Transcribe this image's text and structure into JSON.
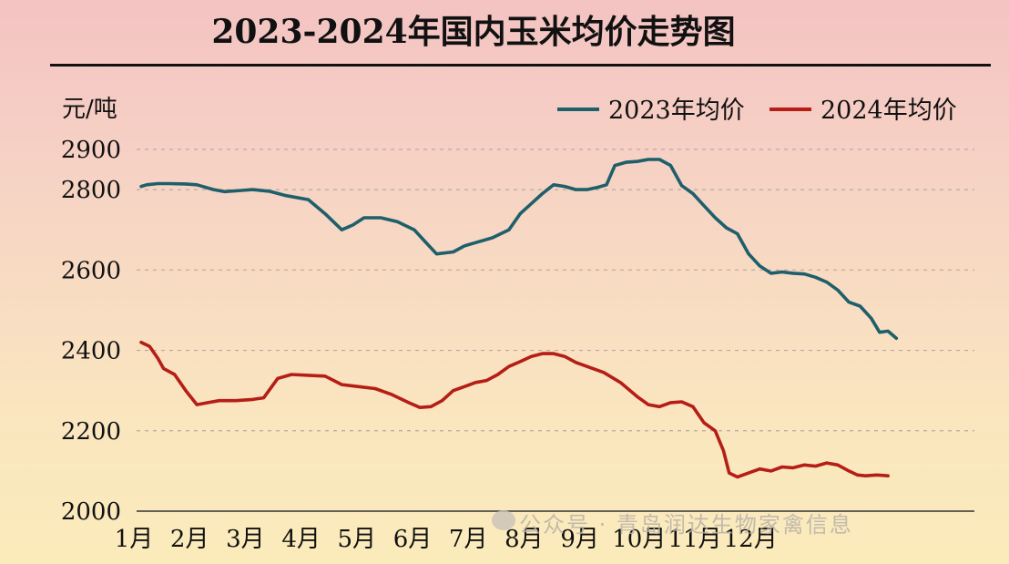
{
  "chart_data": {
    "type": "line",
    "title": "2023-2024年国内玉米均价走势图",
    "ylabel": "元/吨",
    "xlabel": "",
    "ylim": [
      2000,
      2900
    ],
    "y_ticks": [
      2000,
      2200,
      2400,
      2600,
      2800,
      2900
    ],
    "categories": [
      "1月",
      "2月",
      "3月",
      "4月",
      "5月",
      "6月",
      "7月",
      "8月",
      "9月",
      "10月",
      "11月",
      "12月"
    ],
    "grid": true,
    "legend_position": "top-right",
    "series": [
      {
        "name": "2023年均价",
        "color": "#1f5f6b",
        "points": [
          [
            0.0,
            2808
          ],
          [
            0.1,
            2812
          ],
          [
            0.3,
            2815
          ],
          [
            0.5,
            2815
          ],
          [
            0.8,
            2814
          ],
          [
            1.0,
            2812
          ],
          [
            1.3,
            2800
          ],
          [
            1.5,
            2795
          ],
          [
            1.8,
            2798
          ],
          [
            2.0,
            2800
          ],
          [
            2.3,
            2796
          ],
          [
            2.6,
            2785
          ],
          [
            3.0,
            2775
          ],
          [
            3.3,
            2740
          ],
          [
            3.6,
            2700
          ],
          [
            3.8,
            2712
          ],
          [
            4.0,
            2730
          ],
          [
            4.3,
            2730
          ],
          [
            4.6,
            2720
          ],
          [
            4.9,
            2700
          ],
          [
            5.1,
            2670
          ],
          [
            5.3,
            2640
          ],
          [
            5.6,
            2645
          ],
          [
            5.8,
            2660
          ],
          [
            6.0,
            2668
          ],
          [
            6.3,
            2680
          ],
          [
            6.6,
            2700
          ],
          [
            6.8,
            2740
          ],
          [
            7.0,
            2765
          ],
          [
            7.2,
            2790
          ],
          [
            7.4,
            2812
          ],
          [
            7.6,
            2808
          ],
          [
            7.8,
            2800
          ],
          [
            8.0,
            2800
          ],
          [
            8.2,
            2806
          ],
          [
            8.35,
            2812
          ],
          [
            8.5,
            2860
          ],
          [
            8.7,
            2868
          ],
          [
            8.9,
            2870
          ],
          [
            9.1,
            2875
          ],
          [
            9.3,
            2875
          ],
          [
            9.5,
            2860
          ],
          [
            9.7,
            2810
          ],
          [
            9.9,
            2790
          ],
          [
            10.1,
            2760
          ],
          [
            10.3,
            2730
          ],
          [
            10.5,
            2705
          ],
          [
            10.7,
            2690
          ],
          [
            10.9,
            2640
          ],
          [
            11.1,
            2610
          ],
          [
            11.3,
            2592
          ],
          [
            11.5,
            2595
          ],
          [
            11.7,
            2592
          ],
          [
            11.9,
            2590
          ],
          [
            12.1,
            2582
          ],
          [
            12.3,
            2570
          ],
          [
            12.5,
            2550
          ],
          [
            12.7,
            2520
          ],
          [
            12.9,
            2510
          ],
          [
            13.1,
            2480
          ],
          [
            13.25,
            2445
          ],
          [
            13.4,
            2448
          ],
          [
            13.55,
            2430
          ]
        ]
      },
      {
        "name": "2024年均价",
        "color": "#b51e16",
        "points": [
          [
            0.0,
            2420
          ],
          [
            0.15,
            2410
          ],
          [
            0.3,
            2380
          ],
          [
            0.4,
            2355
          ],
          [
            0.6,
            2340
          ],
          [
            0.8,
            2300
          ],
          [
            1.0,
            2265
          ],
          [
            1.2,
            2270
          ],
          [
            1.4,
            2275
          ],
          [
            1.7,
            2275
          ],
          [
            2.0,
            2278
          ],
          [
            2.2,
            2282
          ],
          [
            2.45,
            2330
          ],
          [
            2.7,
            2340
          ],
          [
            3.0,
            2338
          ],
          [
            3.3,
            2336
          ],
          [
            3.6,
            2315
          ],
          [
            3.9,
            2310
          ],
          [
            4.2,
            2305
          ],
          [
            4.5,
            2290
          ],
          [
            4.8,
            2270
          ],
          [
            5.0,
            2258
          ],
          [
            5.2,
            2260
          ],
          [
            5.4,
            2275
          ],
          [
            5.6,
            2300
          ],
          [
            5.8,
            2310
          ],
          [
            6.0,
            2320
          ],
          [
            6.2,
            2325
          ],
          [
            6.4,
            2340
          ],
          [
            6.6,
            2360
          ],
          [
            6.8,
            2372
          ],
          [
            7.0,
            2385
          ],
          [
            7.2,
            2392
          ],
          [
            7.4,
            2392
          ],
          [
            7.6,
            2385
          ],
          [
            7.8,
            2370
          ],
          [
            8.0,
            2360
          ],
          [
            8.3,
            2345
          ],
          [
            8.6,
            2320
          ],
          [
            8.9,
            2285
          ],
          [
            9.1,
            2265
          ],
          [
            9.3,
            2260
          ],
          [
            9.5,
            2270
          ],
          [
            9.7,
            2272
          ],
          [
            9.9,
            2260
          ],
          [
            10.1,
            2220
          ],
          [
            10.3,
            2200
          ],
          [
            10.45,
            2150
          ],
          [
            10.55,
            2095
          ],
          [
            10.7,
            2085
          ],
          [
            10.9,
            2095
          ],
          [
            11.1,
            2105
          ],
          [
            11.3,
            2100
          ],
          [
            11.5,
            2110
          ],
          [
            11.7,
            2108
          ],
          [
            11.9,
            2115
          ],
          [
            12.1,
            2112
          ],
          [
            12.3,
            2120
          ],
          [
            12.5,
            2115
          ],
          [
            12.7,
            2100
          ],
          [
            12.85,
            2090
          ],
          [
            13.0,
            2088
          ],
          [
            13.2,
            2090
          ],
          [
            13.4,
            2088
          ]
        ]
      }
    ]
  },
  "watermark": "公众号 · 青岛润达生物家禽信息"
}
